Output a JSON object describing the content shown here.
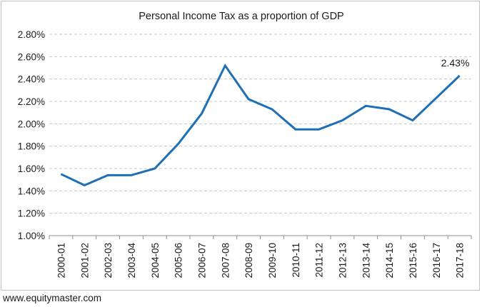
{
  "chart_data": {
    "type": "line",
    "title": "Personal Income Tax as a proportion of GDP",
    "xlabel": "",
    "ylabel": "",
    "categories": [
      "2000-01",
      "2001-02",
      "2002-03",
      "2003-04",
      "2004-05",
      "2005-06",
      "2006-07",
      "2007-08",
      "2008-09",
      "2009-10",
      "2010-11",
      "2011-12",
      "2012-13",
      "2013-14",
      "2014-15",
      "2015-16",
      "2016-17",
      "2017-18"
    ],
    "series": [
      {
        "values": [
          1.55,
          1.45,
          1.54,
          1.54,
          1.6,
          1.82,
          2.09,
          2.52,
          2.22,
          2.13,
          1.95,
          1.95,
          2.03,
          2.16,
          2.13,
          2.03,
          2.23,
          2.43
        ],
        "color": "#1f6fb4"
      }
    ],
    "ylim": [
      1.0,
      2.8
    ],
    "yticks": [
      "1.00%",
      "1.20%",
      "1.40%",
      "1.60%",
      "1.80%",
      "2.00%",
      "2.20%",
      "2.40%",
      "2.60%",
      "2.80%"
    ],
    "annotation": "2.43%",
    "grid": true,
    "legend": "none"
  },
  "source": "www.equitymaster.com"
}
